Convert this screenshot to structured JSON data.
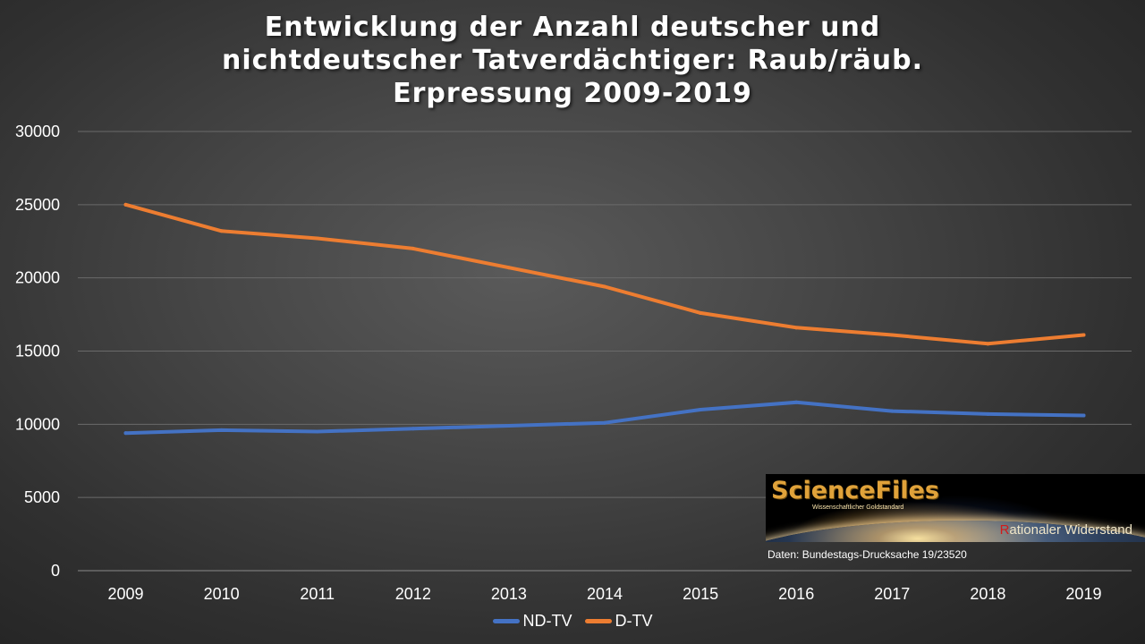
{
  "chart_data": {
    "type": "line",
    "title": "Entwicklung der Anzahl deutscher und nichtdeutscher Tatverdächtiger: Raub/räub. Erpressung 2009-2019",
    "title_lines": [
      "Entwicklung der Anzahl deutscher und",
      "nichtdeutscher Tatverdächtiger: Raub/räub.",
      "Erpressung 2009-2019"
    ],
    "xlabel": "",
    "ylabel": "",
    "categories": [
      "2009",
      "2010",
      "2011",
      "2012",
      "2013",
      "2014",
      "2015",
      "2016",
      "2017",
      "2018",
      "2019"
    ],
    "ylim": [
      0,
      30000
    ],
    "yticks": [
      0,
      5000,
      10000,
      15000,
      20000,
      25000,
      30000
    ],
    "grid": true,
    "legend_position": "bottom",
    "series": [
      {
        "name": "ND-TV",
        "color": "#4472c4",
        "values": [
          9400,
          9600,
          9500,
          9700,
          9900,
          10100,
          11000,
          11500,
          10900,
          10700,
          10600
        ]
      },
      {
        "name": "D-TV",
        "color": "#ed7d31",
        "values": [
          25000,
          23200,
          22700,
          22000,
          20700,
          19400,
          17600,
          16600,
          16100,
          15500,
          16100
        ]
      }
    ]
  },
  "logo": {
    "title": "ScienceFiles",
    "subtitle": "Wissenschaftlicher Goldstandard",
    "slogan_first_letter": "R",
    "slogan_rest": "ationaler Widerstand"
  },
  "source_note": "Daten: Bundestags-Drucksache 19/23520"
}
